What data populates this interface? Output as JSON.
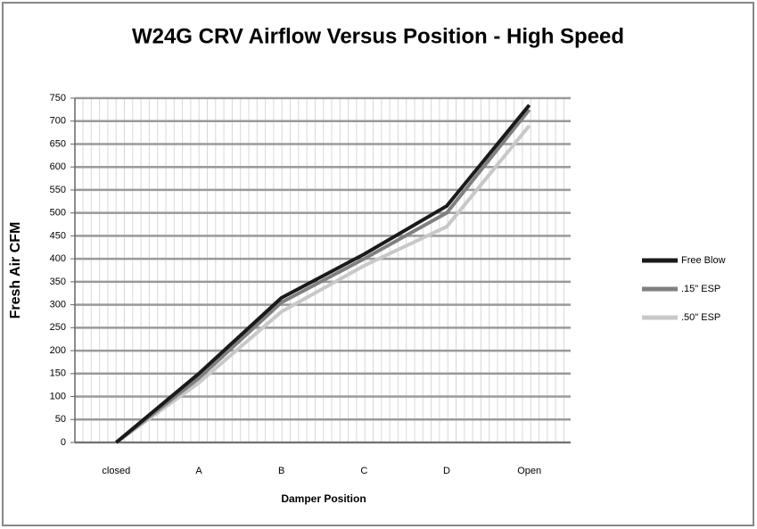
{
  "chart_data": {
    "type": "line",
    "title": "W24G CRV Airflow Versus Position - High Speed",
    "x_label": "Damper Position",
    "y_label": "Fresh Air CFM",
    "categories": [
      "closed",
      "A",
      "B",
      "C",
      "D",
      "Open"
    ],
    "series": [
      {
        "name": "Free Blow",
        "color": "#1a1a1a",
        "values": [
          0,
          150,
          315,
          410,
          515,
          735
        ]
      },
      {
        "name": ".15\" ESP",
        "color": "#808080",
        "values": [
          0,
          140,
          305,
          400,
          500,
          725
        ]
      },
      {
        "name": ".50\" ESP",
        "color": "#c8c8c8",
        "values": [
          0,
          130,
          285,
          385,
          470,
          690
        ]
      }
    ],
    "ylim": [
      0,
      750
    ],
    "yticks": [
      0,
      50,
      100,
      150,
      200,
      250,
      300,
      350,
      400,
      450,
      500,
      550,
      600,
      650,
      700,
      750
    ],
    "grid": true,
    "legend": "right"
  }
}
